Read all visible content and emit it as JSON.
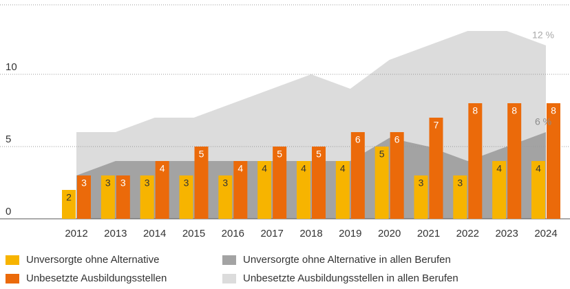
{
  "chart_data": {
    "type": "bar",
    "categories": [
      "2012",
      "2013",
      "2014",
      "2015",
      "2016",
      "2017",
      "2018",
      "2019",
      "2020",
      "2021",
      "2022",
      "2023",
      "2024"
    ],
    "series": [
      {
        "name": "Unversorgte ohne Alternative",
        "color": "#f7b400",
        "kind": "bar",
        "label_color": "#333333",
        "values": [
          2,
          3,
          3,
          3,
          3,
          4,
          4,
          4,
          5,
          3,
          3,
          4,
          4
        ]
      },
      {
        "name": "Unbesetzte Ausbildungsstellen",
        "color": "#eb6a0a",
        "kind": "bar",
        "label_color": "#ffffff",
        "values": [
          3,
          3,
          4,
          5,
          4,
          5,
          5,
          6,
          6,
          7,
          8,
          8,
          8
        ]
      },
      {
        "name": "Unversorgte ohne Alternative in allen Berufen",
        "color": "#a3a3a3",
        "kind": "area",
        "label_color": "#8c8c8c",
        "values": [
          3,
          4,
          4,
          4,
          4,
          4,
          4,
          4,
          5.6,
          5,
          4,
          5,
          6
        ],
        "value_labels": [
          null,
          null,
          null,
          null,
          null,
          null,
          null,
          null,
          null,
          null,
          null,
          null,
          "6 %"
        ]
      },
      {
        "name": "Unbesetzte Ausbildungsstellen in allen Berufen",
        "color": "#dcdcdc",
        "kind": "area",
        "label_color": "#a8a8a8",
        "values": [
          6,
          6,
          7,
          7,
          8,
          9,
          10,
          9,
          11,
          12,
          13,
          13,
          12
        ],
        "value_labels": [
          null,
          null,
          null,
          null,
          null,
          null,
          null,
          null,
          null,
          null,
          null,
          null,
          "12 %"
        ]
      }
    ],
    "ylim": [
      0,
      15
    ],
    "yticks": [
      0,
      5,
      10
    ],
    "grid": true
  }
}
